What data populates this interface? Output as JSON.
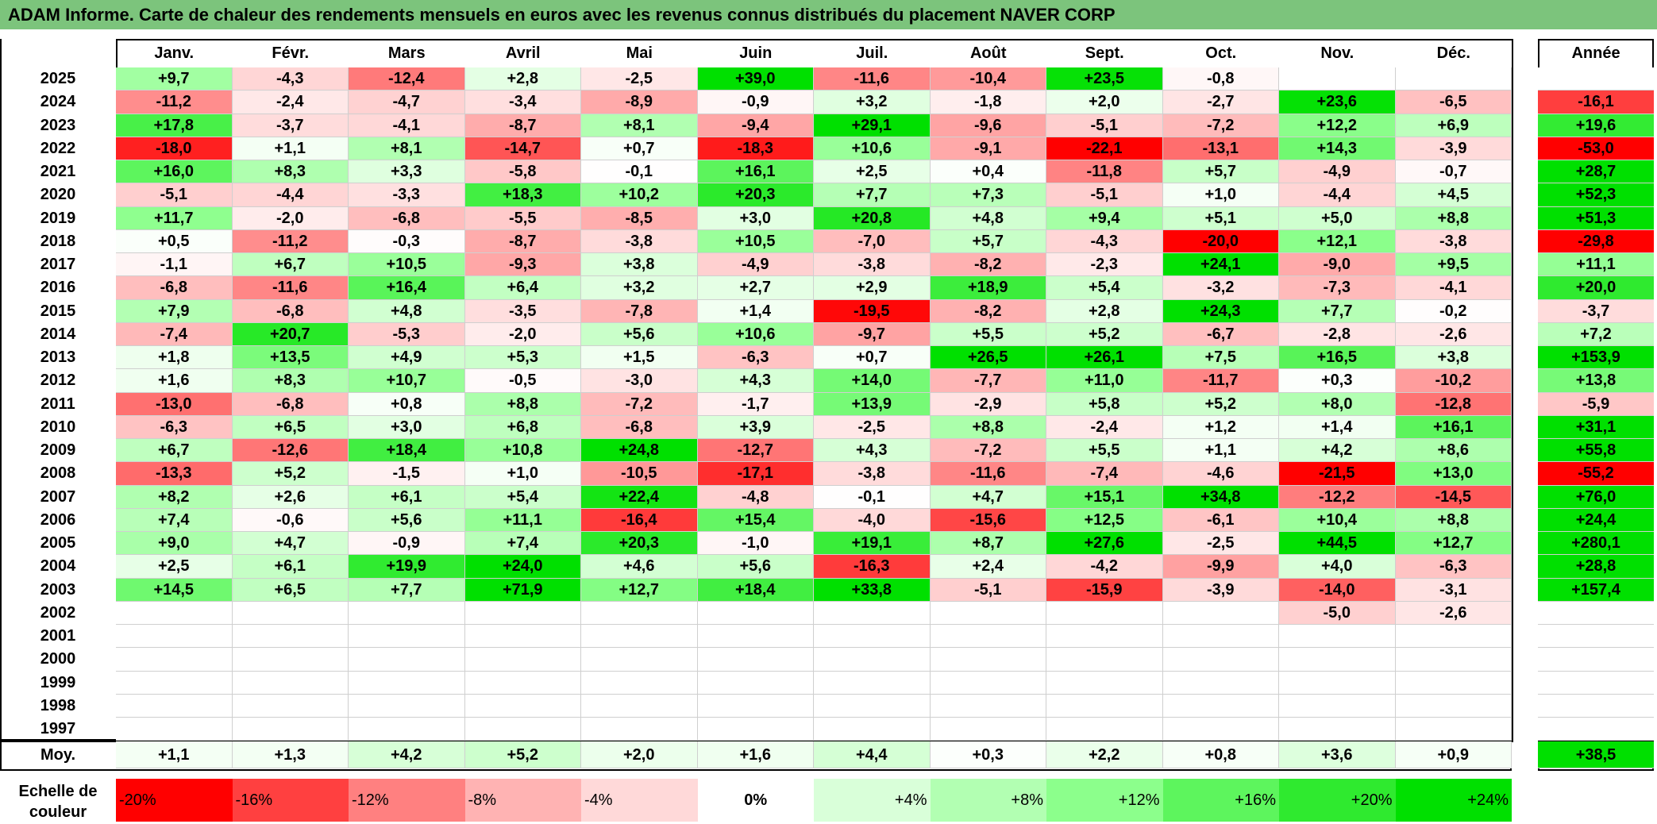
{
  "title": "ADAM Informe. Carte de chaleur des rendements mensuels en euros avec les revenus connus distribués du placement NAVER CORP",
  "colors": {
    "title_bar": "#7cc47c",
    "positive_max": "#00e000",
    "negative_max": "#ff0000",
    "neutral": "#ffffff"
  },
  "chart_data": {
    "type": "heatmap",
    "title": "ADAM Informe. Carte de chaleur des rendements mensuels en euros avec les revenus connus distribués du placement NAVER CORP",
    "columns": [
      "Janv.",
      "Févr.",
      "Mars",
      "Avril",
      "Mai",
      "Juin",
      "Juil.",
      "Août",
      "Sept.",
      "Oct.",
      "Nov.",
      "Déc."
    ],
    "year_header": "Année",
    "rows": [
      {
        "year": "2025",
        "months": [
          "+9,7",
          "-4,3",
          "-12,4",
          "+2,8",
          "-2,5",
          "+39,0",
          "-11,6",
          "-10,4",
          "+23,5",
          "-0,8",
          "",
          ""
        ],
        "annual": ""
      },
      {
        "year": "2024",
        "months": [
          "-11,2",
          "-2,4",
          "-4,7",
          "-3,4",
          "-8,9",
          "-0,9",
          "+3,2",
          "-1,8",
          "+2,0",
          "-2,7",
          "+23,6",
          "-6,5"
        ],
        "annual": "-16,1"
      },
      {
        "year": "2023",
        "months": [
          "+17,8",
          "-3,7",
          "-4,1",
          "-8,7",
          "+8,1",
          "-9,4",
          "+29,1",
          "-9,6",
          "-5,1",
          "-7,2",
          "+12,2",
          "+6,9"
        ],
        "annual": "+19,6"
      },
      {
        "year": "2022",
        "months": [
          "-18,0",
          "+1,1",
          "+8,1",
          "-14,7",
          "+0,7",
          "-18,3",
          "+10,6",
          "-9,1",
          "-22,1",
          "-13,1",
          "+14,3",
          "-3,9"
        ],
        "annual": "-53,0"
      },
      {
        "year": "2021",
        "months": [
          "+16,0",
          "+8,3",
          "+3,3",
          "-5,8",
          "-0,1",
          "+16,1",
          "+2,5",
          "+0,4",
          "-11,8",
          "+5,7",
          "-4,9",
          "-0,7"
        ],
        "annual": "+28,7"
      },
      {
        "year": "2020",
        "months": [
          "-5,1",
          "-4,4",
          "-3,3",
          "+18,3",
          "+10,2",
          "+20,3",
          "+7,7",
          "+7,3",
          "-5,1",
          "+1,0",
          "-4,4",
          "+4,5"
        ],
        "annual": "+52,3"
      },
      {
        "year": "2019",
        "months": [
          "+11,7",
          "-2,0",
          "-6,8",
          "-5,5",
          "-8,5",
          "+3,0",
          "+20,8",
          "+4,8",
          "+9,4",
          "+5,1",
          "+5,0",
          "+8,8"
        ],
        "annual": "+51,3"
      },
      {
        "year": "2018",
        "months": [
          "+0,5",
          "-11,2",
          "-0,3",
          "-8,7",
          "-3,8",
          "+10,5",
          "-7,0",
          "+5,7",
          "-4,3",
          "-20,0",
          "+12,1",
          "-3,8"
        ],
        "annual": "-29,8"
      },
      {
        "year": "2017",
        "months": [
          "-1,1",
          "+6,7",
          "+10,5",
          "-9,3",
          "+3,8",
          "-4,9",
          "-3,8",
          "-8,2",
          "-2,3",
          "+24,1",
          "-9,0",
          "+9,5"
        ],
        "annual": "+11,1"
      },
      {
        "year": "2016",
        "months": [
          "-6,8",
          "-11,6",
          "+16,4",
          "+6,4",
          "+3,2",
          "+2,7",
          "+2,9",
          "+18,9",
          "+5,4",
          "-3,2",
          "-7,3",
          "-4,1"
        ],
        "annual": "+20,0"
      },
      {
        "year": "2015",
        "months": [
          "+7,9",
          "-6,8",
          "+4,8",
          "-3,5",
          "-7,8",
          "+1,4",
          "-19,5",
          "-8,2",
          "+2,8",
          "+24,3",
          "+7,7",
          "-0,2"
        ],
        "annual": "-3,7"
      },
      {
        "year": "2014",
        "months": [
          "-7,4",
          "+20,7",
          "-5,3",
          "-2,0",
          "+5,6",
          "+10,6",
          "-9,7",
          "+5,5",
          "+5,2",
          "-6,7",
          "-2,8",
          "-2,6"
        ],
        "annual": "+7,2"
      },
      {
        "year": "2013",
        "months": [
          "+1,8",
          "+13,5",
          "+4,9",
          "+5,3",
          "+1,5",
          "-6,3",
          "+0,7",
          "+26,5",
          "+26,1",
          "+7,5",
          "+16,5",
          "+3,8"
        ],
        "annual": "+153,9"
      },
      {
        "year": "2012",
        "months": [
          "+1,6",
          "+8,3",
          "+10,7",
          "-0,5",
          "-3,0",
          "+4,3",
          "+14,0",
          "-7,7",
          "+11,0",
          "-11,7",
          "+0,3",
          "-10,2"
        ],
        "annual": "+13,8"
      },
      {
        "year": "2011",
        "months": [
          "-13,0",
          "-6,8",
          "+0,8",
          "+8,8",
          "-7,2",
          "-1,7",
          "+13,9",
          "-2,9",
          "+5,8",
          "+5,2",
          "+8,0",
          "-12,8"
        ],
        "annual": "-5,9"
      },
      {
        "year": "2010",
        "months": [
          "-6,3",
          "+6,5",
          "+3,0",
          "+6,8",
          "-6,8",
          "+3,9",
          "-2,5",
          "+8,8",
          "-2,4",
          "+1,2",
          "+1,4",
          "+16,1"
        ],
        "annual": "+31,1"
      },
      {
        "year": "2009",
        "months": [
          "+6,7",
          "-12,6",
          "+18,4",
          "+10,8",
          "+24,8",
          "-12,7",
          "+4,3",
          "-7,2",
          "+5,5",
          "+1,1",
          "+4,2",
          "+8,6"
        ],
        "annual": "+55,8"
      },
      {
        "year": "2008",
        "months": [
          "-13,3",
          "+5,2",
          "-1,5",
          "+1,0",
          "-10,5",
          "-17,1",
          "-3,8",
          "-11,6",
          "-7,4",
          "-4,6",
          "-21,5",
          "+13,0"
        ],
        "annual": "-55,2"
      },
      {
        "year": "2007",
        "months": [
          "+8,2",
          "+2,6",
          "+6,1",
          "+5,4",
          "+22,4",
          "-4,8",
          "-0,1",
          "+4,7",
          "+15,1",
          "+34,8",
          "-12,2",
          "-14,5"
        ],
        "annual": "+76,0"
      },
      {
        "year": "2006",
        "months": [
          "+7,4",
          "-0,6",
          "+5,6",
          "+11,1",
          "-16,4",
          "+15,4",
          "-4,0",
          "-15,6",
          "+12,5",
          "-6,1",
          "+10,4",
          "+8,8"
        ],
        "annual": "+24,4"
      },
      {
        "year": "2005",
        "months": [
          "+9,0",
          "+4,7",
          "-0,9",
          "+7,4",
          "+20,3",
          "-1,0",
          "+19,1",
          "+8,7",
          "+27,6",
          "-2,5",
          "+44,5",
          "+12,7"
        ],
        "annual": "+280,1"
      },
      {
        "year": "2004",
        "months": [
          "+2,5",
          "+6,1",
          "+19,9",
          "+24,0",
          "+4,6",
          "+5,6",
          "-16,3",
          "+2,4",
          "-4,2",
          "-9,9",
          "+4,0",
          "-6,3"
        ],
        "annual": "+28,8"
      },
      {
        "year": "2003",
        "months": [
          "+14,5",
          "+6,5",
          "+7,7",
          "+71,9",
          "+12,7",
          "+18,4",
          "+33,8",
          "-5,1",
          "-15,9",
          "-3,9",
          "-14,0",
          "-3,1"
        ],
        "annual": "+157,4"
      },
      {
        "year": "2002",
        "months": [
          "",
          "",
          "",
          "",
          "",
          "",
          "",
          "",
          "",
          "",
          "-5,0",
          "-2,6"
        ],
        "annual": ""
      },
      {
        "year": "2001",
        "months": [
          "",
          "",
          "",
          "",
          "",
          "",
          "",
          "",
          "",
          "",
          "",
          ""
        ],
        "annual": ""
      },
      {
        "year": "2000",
        "months": [
          "",
          "",
          "",
          "",
          "",
          "",
          "",
          "",
          "",
          "",
          "",
          ""
        ],
        "annual": ""
      },
      {
        "year": "1999",
        "months": [
          "",
          "",
          "",
          "",
          "",
          "",
          "",
          "",
          "",
          "",
          "",
          ""
        ],
        "annual": ""
      },
      {
        "year": "1998",
        "months": [
          "",
          "",
          "",
          "",
          "",
          "",
          "",
          "",
          "",
          "",
          "",
          ""
        ],
        "annual": ""
      },
      {
        "year": "1997",
        "months": [
          "",
          "",
          "",
          "",
          "",
          "",
          "",
          "",
          "",
          "",
          "",
          ""
        ],
        "annual": ""
      }
    ],
    "average": {
      "label": "Moy.",
      "months": [
        "+1,1",
        "+1,3",
        "+4,2",
        "+5,2",
        "+2,0",
        "+1,6",
        "+4,4",
        "+0,3",
        "+2,2",
        "+0,8",
        "+3,6",
        "+0,9"
      ],
      "annual": "+38,5"
    },
    "scale": {
      "label": "Echelle de couleur",
      "stops": [
        "-20%",
        "-16%",
        "-12%",
        "-8%",
        "-4%",
        "0%",
        "+4%",
        "+8%",
        "+12%",
        "+16%",
        "+20%",
        "+24%"
      ]
    }
  }
}
